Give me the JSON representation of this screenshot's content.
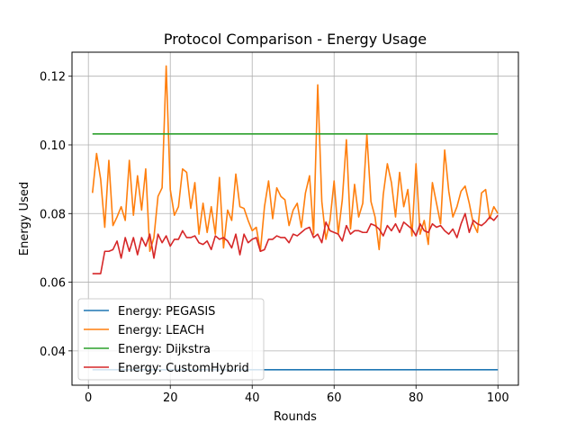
{
  "chart_data": {
    "type": "line",
    "title": "Protocol Comparison - Energy Usage",
    "xlabel": "Rounds",
    "ylabel": "Energy Used",
    "xlim": [
      -4,
      105
    ],
    "ylim": [
      0.03,
      0.127
    ],
    "xticks": [
      0,
      20,
      40,
      60,
      80,
      100
    ],
    "yticks": [
      0.04,
      0.06,
      0.08,
      0.1,
      0.12
    ],
    "ytick_labels": [
      "0.04",
      "0.06",
      "0.08",
      "0.10",
      "0.12"
    ],
    "grid": true,
    "legend_position": "lower-left",
    "x": [
      1,
      2,
      3,
      4,
      5,
      6,
      7,
      8,
      9,
      10,
      11,
      12,
      13,
      14,
      15,
      16,
      17,
      18,
      19,
      20,
      21,
      22,
      23,
      24,
      25,
      26,
      27,
      28,
      29,
      30,
      31,
      32,
      33,
      34,
      35,
      36,
      37,
      38,
      39,
      40,
      41,
      42,
      43,
      44,
      45,
      46,
      47,
      48,
      49,
      50,
      51,
      52,
      53,
      54,
      55,
      56,
      57,
      58,
      59,
      60,
      61,
      62,
      63,
      64,
      65,
      66,
      67,
      68,
      69,
      70,
      71,
      72,
      73,
      74,
      75,
      76,
      77,
      78,
      79,
      80,
      81,
      82,
      83,
      84,
      85,
      86,
      87,
      88,
      89,
      90,
      91,
      92,
      93,
      94,
      95,
      96,
      97,
      98,
      99,
      100
    ],
    "series": [
      {
        "name": "Energy: PEGASIS",
        "color": "#1f77b4",
        "values": [
          0.0345,
          0.0345,
          0.0345,
          0.0345,
          0.0345,
          0.0345,
          0.0345,
          0.0345,
          0.0345,
          0.0345,
          0.0345,
          0.0345,
          0.0345,
          0.0345,
          0.0345,
          0.0345,
          0.0345,
          0.0345,
          0.0345,
          0.0345,
          0.0345,
          0.0345,
          0.0345,
          0.0345,
          0.0345,
          0.0345,
          0.0345,
          0.0345,
          0.0345,
          0.0345,
          0.0345,
          0.0345,
          0.0345,
          0.0345,
          0.0345,
          0.0345,
          0.0345,
          0.0345,
          0.0345,
          0.0345,
          0.0345,
          0.0345,
          0.0345,
          0.0345,
          0.0345,
          0.0345,
          0.0345,
          0.0345,
          0.0345,
          0.0345,
          0.0345,
          0.0345,
          0.0345,
          0.0345,
          0.0345,
          0.0345,
          0.0345,
          0.0345,
          0.0345,
          0.0345,
          0.0345,
          0.0345,
          0.0345,
          0.0345,
          0.0345,
          0.0345,
          0.0345,
          0.0345,
          0.0345,
          0.0345,
          0.0345,
          0.0345,
          0.0345,
          0.0345,
          0.0345,
          0.0345,
          0.0345,
          0.0345,
          0.0345,
          0.0345,
          0.0345,
          0.0345,
          0.0345,
          0.0345,
          0.0345,
          0.0345,
          0.0345,
          0.0345,
          0.0345,
          0.0345,
          0.0345,
          0.0345,
          0.0345,
          0.0345,
          0.0345,
          0.0345,
          0.0345,
          0.0345,
          0.0345,
          0.0345
        ]
      },
      {
        "name": "Energy: LEACH",
        "color": "#ff7f0e",
        "values": [
          0.086,
          0.0975,
          0.09,
          0.076,
          0.0955,
          0.0765,
          0.079,
          0.082,
          0.078,
          0.0955,
          0.0795,
          0.091,
          0.081,
          0.093,
          0.069,
          0.073,
          0.085,
          0.0875,
          0.123,
          0.087,
          0.0795,
          0.082,
          0.093,
          0.092,
          0.0815,
          0.089,
          0.074,
          0.083,
          0.0745,
          0.082,
          0.074,
          0.0905,
          0.07,
          0.081,
          0.078,
          0.0915,
          0.082,
          0.0815,
          0.078,
          0.075,
          0.076,
          0.069,
          0.082,
          0.0895,
          0.0785,
          0.0875,
          0.085,
          0.084,
          0.0765,
          0.081,
          0.083,
          0.076,
          0.086,
          0.091,
          0.074,
          0.1175,
          0.0835,
          0.0725,
          0.078,
          0.0895,
          0.074,
          0.084,
          0.1015,
          0.0755,
          0.0885,
          0.079,
          0.083,
          0.103,
          0.0835,
          0.079,
          0.0695,
          0.0855,
          0.0945,
          0.089,
          0.079,
          0.092,
          0.082,
          0.087,
          0.0735,
          0.0945,
          0.074,
          0.078,
          0.071,
          0.089,
          0.083,
          0.077,
          0.0985,
          0.0865,
          0.079,
          0.082,
          0.0865,
          0.088,
          0.083,
          0.077,
          0.0745,
          0.086,
          0.087,
          0.0785,
          0.082,
          0.08
        ]
      },
      {
        "name": "Energy: Dijkstra",
        "color": "#2ca02c",
        "values": [
          0.1032,
          0.1032,
          0.1032,
          0.1032,
          0.1032,
          0.1032,
          0.1032,
          0.1032,
          0.1032,
          0.1032,
          0.1032,
          0.1032,
          0.1032,
          0.1032,
          0.1032,
          0.1032,
          0.1032,
          0.1032,
          0.1032,
          0.1032,
          0.1032,
          0.1032,
          0.1032,
          0.1032,
          0.1032,
          0.1032,
          0.1032,
          0.1032,
          0.1032,
          0.1032,
          0.1032,
          0.1032,
          0.1032,
          0.1032,
          0.1032,
          0.1032,
          0.1032,
          0.1032,
          0.1032,
          0.1032,
          0.1032,
          0.1032,
          0.1032,
          0.1032,
          0.1032,
          0.1032,
          0.1032,
          0.1032,
          0.1032,
          0.1032,
          0.1032,
          0.1032,
          0.1032,
          0.1032,
          0.1032,
          0.1032,
          0.1032,
          0.1032,
          0.1032,
          0.1032,
          0.1032,
          0.1032,
          0.1032,
          0.1032,
          0.1032,
          0.1032,
          0.1032,
          0.1032,
          0.1032,
          0.1032,
          0.1032,
          0.1032,
          0.1032,
          0.1032,
          0.1032,
          0.1032,
          0.1032,
          0.1032,
          0.1032,
          0.1032,
          0.1032,
          0.1032,
          0.1032,
          0.1032,
          0.1032,
          0.1032,
          0.1032,
          0.1032,
          0.1032,
          0.1032,
          0.1032,
          0.1032,
          0.1032,
          0.1032,
          0.1032,
          0.1032,
          0.1032,
          0.1032,
          0.1032,
          0.1032
        ]
      },
      {
        "name": "Energy: CustomHybrid",
        "color": "#d62728",
        "values": [
          0.0625,
          0.0625,
          0.0625,
          0.069,
          0.069,
          0.0695,
          0.072,
          0.067,
          0.073,
          0.069,
          0.073,
          0.068,
          0.073,
          0.0705,
          0.074,
          0.067,
          0.074,
          0.0715,
          0.0735,
          0.0705,
          0.0725,
          0.0725,
          0.075,
          0.073,
          0.073,
          0.0735,
          0.0715,
          0.071,
          0.072,
          0.0695,
          0.0735,
          0.0725,
          0.073,
          0.072,
          0.07,
          0.074,
          0.068,
          0.074,
          0.0715,
          0.0725,
          0.073,
          0.069,
          0.0695,
          0.0725,
          0.0725,
          0.0735,
          0.073,
          0.073,
          0.0715,
          0.074,
          0.0735,
          0.0745,
          0.0755,
          0.076,
          0.073,
          0.074,
          0.0715,
          0.0775,
          0.075,
          0.0745,
          0.074,
          0.072,
          0.0765,
          0.074,
          0.075,
          0.075,
          0.0745,
          0.0745,
          0.077,
          0.0765,
          0.0755,
          0.0735,
          0.0765,
          0.075,
          0.077,
          0.0745,
          0.0775,
          0.0765,
          0.0755,
          0.0735,
          0.077,
          0.075,
          0.0745,
          0.077,
          0.076,
          0.0765,
          0.075,
          0.074,
          0.0755,
          0.073,
          0.077,
          0.08,
          0.0745,
          0.078,
          0.077,
          0.0765,
          0.0775,
          0.079,
          0.078,
          0.0795
        ]
      }
    ]
  }
}
